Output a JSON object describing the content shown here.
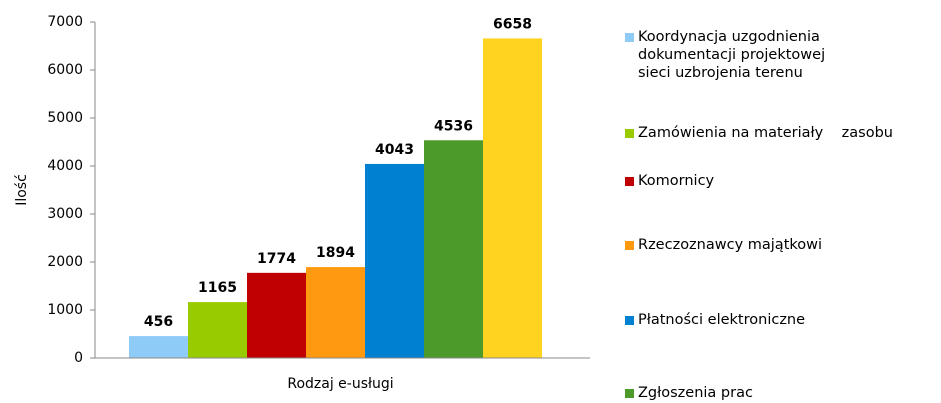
{
  "chart_data": {
    "type": "bar",
    "x_label": "Rodzaj e-usługi",
    "y_label": "Ilość",
    "categories": [
      "Rodzaj e-usługi"
    ],
    "series": [
      {
        "name": "Koordynacja uzgodnienia dokumentacji projektowej sieci uzbrojenia terenu",
        "color": "#8ecbf7",
        "values": [
          456
        ]
      },
      {
        "name": "Zamówienia na materiały    zasobu",
        "color": "#99cc00",
        "values": [
          1165
        ]
      },
      {
        "name": "Komornicy",
        "color": "#c00000",
        "values": [
          1774
        ]
      },
      {
        "name": "Rzeczoznawcy majątkowi",
        "color": "#ff9910",
        "values": [
          1894
        ]
      },
      {
        "name": "Płatności elektroniczne",
        "color": "#0080d0",
        "values": [
          4043
        ]
      },
      {
        "name": "Zgłoszenia prac geodezyjnych",
        "color": "#4c9a2a",
        "values": [
          4536
        ]
      },
      {
        "color": "#ffd320",
        "values": [
          6658
        ]
      }
    ],
    "ylim": [
      0,
      7000
    ],
    "yticks": [
      0,
      1000,
      2000,
      3000,
      4000,
      5000,
      6000,
      7000
    ],
    "grid": false
  }
}
